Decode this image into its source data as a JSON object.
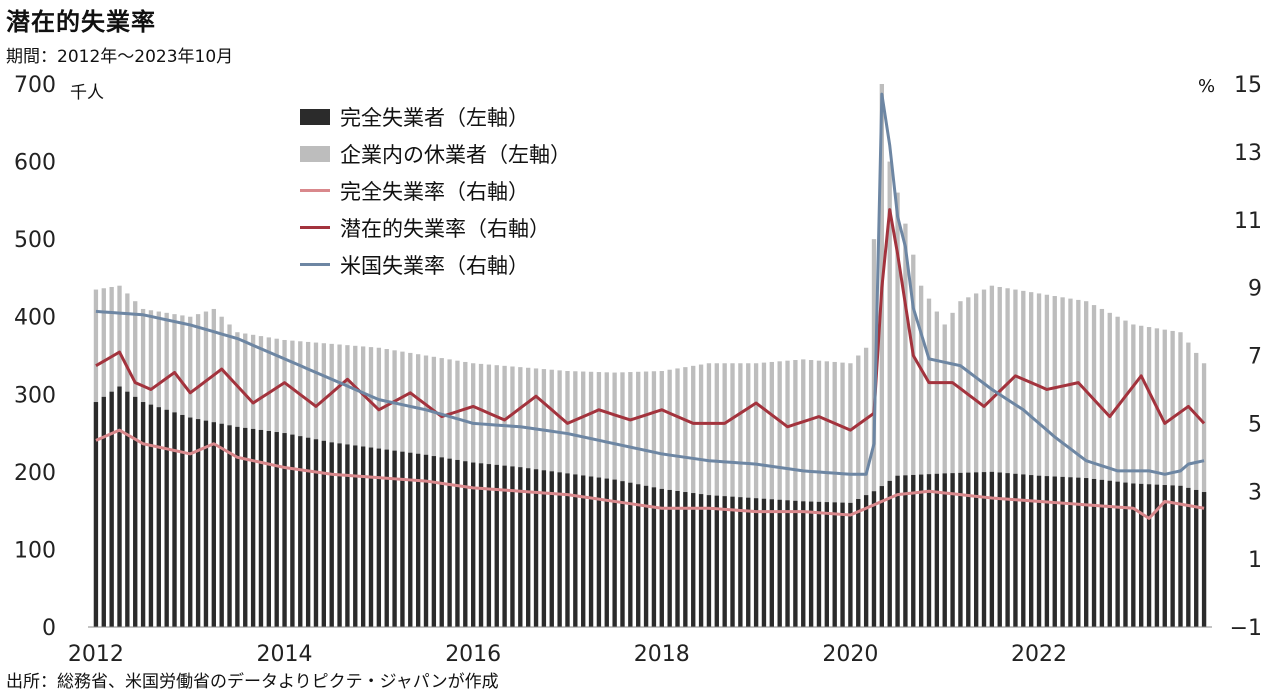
{
  "title": "潜在的失業率",
  "period": "期間：2012年～2023年10月",
  "source": "出所：総務省、米国労働省のデータよりピクテ・ジャパンが作成",
  "unit_left": "千人",
  "unit_right": "%",
  "legend": {
    "unemployed": "完全失業者（左軸）",
    "furlough": "企業内の休業者（左軸）",
    "jp_rate": "完全失業率（右軸）",
    "potential_rate": "潜在的失業率（右軸）",
    "us_rate": "米国失業率（右軸）"
  },
  "colors": {
    "unemployed": "#2b2b2b",
    "furlough": "#bdbdbd",
    "jp_rate": "#d9888c",
    "potential_rate": "#a3333d",
    "us_rate": "#6d86a3"
  },
  "chart_data": {
    "type": "bar+line",
    "x_ticks": [
      "2012",
      "2014",
      "2016",
      "2018",
      "2020",
      "2022"
    ],
    "left_axis": {
      "ticks": [
        "0",
        "100",
        "200",
        "300",
        "400",
        "500",
        "600",
        "700"
      ],
      "ylim": [
        0,
        700
      ]
    },
    "right_axis": {
      "ticks": [
        "−1",
        "1",
        "3",
        "5",
        "7",
        "9",
        "11",
        "13",
        "15"
      ],
      "ylim": [
        -1,
        15
      ]
    },
    "periods": 142,
    "x_range": [
      "2012-01",
      "2023-10"
    ],
    "anchors": {
      "unemployed": [
        [
          0,
          290
        ],
        [
          3,
          310
        ],
        [
          6,
          290
        ],
        [
          12,
          270
        ],
        [
          18,
          258
        ],
        [
          24,
          250
        ],
        [
          30,
          238
        ],
        [
          36,
          230
        ],
        [
          42,
          222
        ],
        [
          48,
          212
        ],
        [
          54,
          206
        ],
        [
          60,
          198
        ],
        [
          66,
          190
        ],
        [
          72,
          178
        ],
        [
          78,
          170
        ],
        [
          84,
          166
        ],
        [
          90,
          162
        ],
        [
          96,
          160
        ],
        [
          99,
          175
        ],
        [
          102,
          195
        ],
        [
          104,
          196
        ],
        [
          108,
          198
        ],
        [
          114,
          200
        ],
        [
          120,
          195
        ],
        [
          126,
          192
        ],
        [
          132,
          185
        ],
        [
          138,
          182
        ],
        [
          141,
          174
        ]
      ],
      "furlough": [
        [
          0,
          435
        ],
        [
          3,
          440
        ],
        [
          6,
          410
        ],
        [
          12,
          400
        ],
        [
          15,
          410
        ],
        [
          18,
          380
        ],
        [
          24,
          370
        ],
        [
          30,
          365
        ],
        [
          36,
          360
        ],
        [
          42,
          350
        ],
        [
          48,
          340
        ],
        [
          54,
          335
        ],
        [
          60,
          330
        ],
        [
          66,
          328
        ],
        [
          72,
          330
        ],
        [
          78,
          340
        ],
        [
          84,
          340
        ],
        [
          90,
          345
        ],
        [
          96,
          340
        ],
        [
          98,
          360
        ],
        [
          99,
          500
        ],
        [
          100,
          700
        ],
        [
          101,
          600
        ],
        [
          103,
          520
        ],
        [
          105,
          440
        ],
        [
          108,
          390
        ],
        [
          110,
          420
        ],
        [
          114,
          440
        ],
        [
          120,
          430
        ],
        [
          126,
          420
        ],
        [
          132,
          390
        ],
        [
          138,
          380
        ],
        [
          141,
          340
        ]
      ],
      "jp_rate": [
        [
          0,
          4.5
        ],
        [
          3,
          4.8
        ],
        [
          6,
          4.4
        ],
        [
          12,
          4.1
        ],
        [
          15,
          4.4
        ],
        [
          18,
          4.0
        ],
        [
          24,
          3.7
        ],
        [
          30,
          3.5
        ],
        [
          36,
          3.4
        ],
        [
          42,
          3.3
        ],
        [
          48,
          3.1
        ],
        [
          54,
          3.0
        ],
        [
          60,
          2.9
        ],
        [
          66,
          2.7
        ],
        [
          72,
          2.5
        ],
        [
          78,
          2.5
        ],
        [
          84,
          2.4
        ],
        [
          90,
          2.4
        ],
        [
          96,
          2.3
        ],
        [
          99,
          2.6
        ],
        [
          102,
          2.9
        ],
        [
          106,
          3.0
        ],
        [
          110,
          2.9
        ],
        [
          114,
          2.8
        ],
        [
          120,
          2.7
        ],
        [
          126,
          2.6
        ],
        [
          132,
          2.5
        ],
        [
          134,
          2.2
        ],
        [
          136,
          2.7
        ],
        [
          141,
          2.5
        ]
      ],
      "potential_rate": [
        [
          0,
          6.7
        ],
        [
          3,
          7.1
        ],
        [
          5,
          6.2
        ],
        [
          7,
          6.0
        ],
        [
          10,
          6.5
        ],
        [
          12,
          5.9
        ],
        [
          16,
          6.6
        ],
        [
          20,
          5.6
        ],
        [
          24,
          6.2
        ],
        [
          28,
          5.5
        ],
        [
          32,
          6.3
        ],
        [
          36,
          5.4
        ],
        [
          40,
          5.9
        ],
        [
          44,
          5.2
        ],
        [
          48,
          5.5
        ],
        [
          52,
          5.1
        ],
        [
          56,
          5.8
        ],
        [
          60,
          5.0
        ],
        [
          64,
          5.4
        ],
        [
          68,
          5.1
        ],
        [
          72,
          5.4
        ],
        [
          76,
          5.0
        ],
        [
          80,
          5.0
        ],
        [
          84,
          5.6
        ],
        [
          88,
          4.9
        ],
        [
          92,
          5.2
        ],
        [
          96,
          4.8
        ],
        [
          99,
          5.3
        ],
        [
          100,
          9.0
        ],
        [
          101,
          11.3
        ],
        [
          102,
          10.0
        ],
        [
          103,
          8.5
        ],
        [
          104,
          7.0
        ],
        [
          106,
          6.2
        ],
        [
          109,
          6.2
        ],
        [
          113,
          5.5
        ],
        [
          117,
          6.4
        ],
        [
          121,
          6.0
        ],
        [
          125,
          6.2
        ],
        [
          129,
          5.2
        ],
        [
          133,
          6.4
        ],
        [
          136,
          5.0
        ],
        [
          139,
          5.5
        ],
        [
          141,
          5.0
        ]
      ],
      "us_rate": [
        [
          0,
          8.3
        ],
        [
          6,
          8.2
        ],
        [
          12,
          7.9
        ],
        [
          18,
          7.5
        ],
        [
          24,
          6.9
        ],
        [
          30,
          6.3
        ],
        [
          36,
          5.7
        ],
        [
          42,
          5.4
        ],
        [
          48,
          5.0
        ],
        [
          54,
          4.9
        ],
        [
          60,
          4.7
        ],
        [
          66,
          4.4
        ],
        [
          72,
          4.1
        ],
        [
          78,
          3.9
        ],
        [
          84,
          3.8
        ],
        [
          90,
          3.6
        ],
        [
          96,
          3.5
        ],
        [
          98,
          3.5
        ],
        [
          99,
          4.4
        ],
        [
          100,
          14.7
        ],
        [
          101,
          13.2
        ],
        [
          102,
          11.1
        ],
        [
          103,
          10.2
        ],
        [
          104,
          8.4
        ],
        [
          106,
          6.9
        ],
        [
          110,
          6.7
        ],
        [
          114,
          6.0
        ],
        [
          118,
          5.4
        ],
        [
          122,
          4.6
        ],
        [
          126,
          3.9
        ],
        [
          130,
          3.6
        ],
        [
          134,
          3.6
        ],
        [
          136,
          3.5
        ],
        [
          138,
          3.6
        ],
        [
          139,
          3.8
        ],
        [
          141,
          3.9
        ]
      ]
    }
  }
}
